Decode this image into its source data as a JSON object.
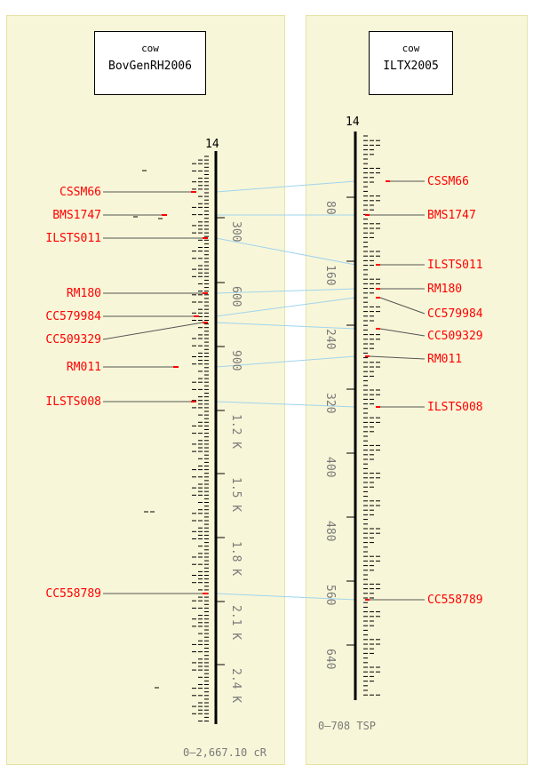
{
  "maps": [
    {
      "species": "cow",
      "map_name": "BovGenRH2006",
      "chromosome": "14",
      "range_label": "0–2,667.10 cR",
      "axis_ticks": [
        "300",
        "600",
        "900",
        "1.2 K",
        "1.5 K",
        "1.8 K",
        "2.1 K",
        "2.4 K"
      ],
      "markers": [
        "CSSM66",
        "BMS1747",
        "ILSTS011",
        "RM180",
        "CC579984",
        "CC509329",
        "RM011",
        "ILSTS008",
        "CC558789"
      ]
    },
    {
      "species": "cow",
      "map_name": "ILTX2005",
      "chromosome": "14",
      "range_label": "0–708 TSP",
      "axis_ticks": [
        "80",
        "160",
        "240",
        "320",
        "400",
        "480",
        "560",
        "640"
      ],
      "markers": [
        "CSSM66",
        "BMS1747",
        "ILSTS011",
        "RM180",
        "CC579984",
        "CC509329",
        "RM011",
        "ILSTS008",
        "CC558789"
      ]
    }
  ],
  "colors": {
    "panel_bg": "#f8f6d8",
    "panel_border": "#e6e2a6",
    "marker_label": "#ff0000",
    "connector": "#9fd4ee",
    "axis_text": "#7a7a7a",
    "leader": "#555555"
  }
}
